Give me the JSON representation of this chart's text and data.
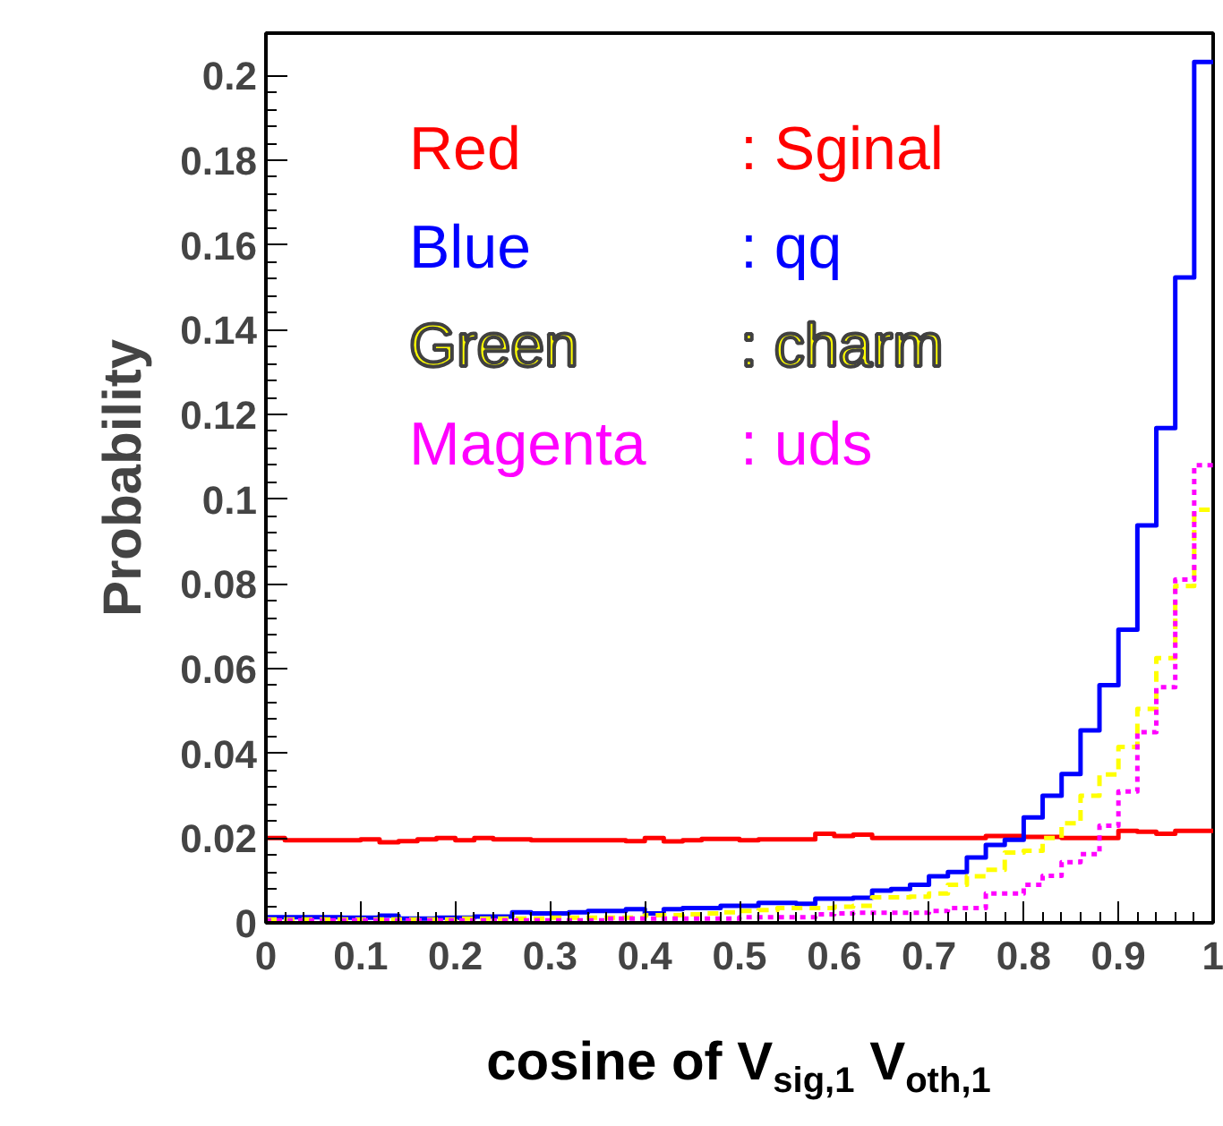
{
  "chart_data": {
    "type": "histogram",
    "xlabel": "cosine of V$_{sig,1}$ V$_{oth,1}$",
    "ylabel": "Probability",
    "annotations": [
      "Red",
      "Blue",
      "Green",
      "Magenta"
    ],
    "bins": [
      0,
      0.02,
      0.04,
      0.06,
      0.08,
      0.1,
      0.12,
      0.14,
      0.16,
      0.18,
      0.2,
      0.22,
      0.24,
      0.26,
      0.28,
      0.3,
      0.32,
      0.34,
      0.36,
      0.38,
      0.4,
      0.42,
      0.44,
      0.46,
      0.48,
      0.5,
      0.52,
      0.54,
      0.56,
      0.58,
      0.6,
      0.62,
      0.64,
      0.66,
      0.68,
      0.7,
      0.72,
      0.74,
      0.76,
      0.78,
      0.8,
      0.82,
      0.84,
      0.86,
      0.88,
      0.9,
      0.92,
      0.94,
      0.96,
      0.98,
      1
    ],
    "series": [
      {
        "name": ": Sginal",
        "color": "#ff0000",
        "line_style": "solid",
        "values": [
          0.02,
          0.0195,
          0.0195,
          0.0195,
          0.0195,
          0.0197,
          0.019,
          0.0193,
          0.0197,
          0.02,
          0.0195,
          0.02,
          0.0197,
          0.0197,
          0.0195,
          0.0195,
          0.0195,
          0.0195,
          0.0195,
          0.0193,
          0.02,
          0.0192,
          0.0195,
          0.0198,
          0.0198,
          0.0195,
          0.0197,
          0.0197,
          0.0197,
          0.021,
          0.0205,
          0.0208,
          0.02,
          0.02,
          0.02,
          0.02,
          0.02,
          0.02,
          0.0205,
          0.0205,
          0.0203,
          0.0203,
          0.02,
          0.02,
          0.02,
          0.0217,
          0.0215,
          0.021,
          0.0217,
          0.0217
        ]
      },
      {
        "name": ": qq",
        "color": "#0000ff",
        "line_style": "solid",
        "values": [
          0.0013,
          0.0013,
          0.0013,
          0.0013,
          0.0012,
          0.0012,
          0.0017,
          0.001,
          0.001,
          0.0012,
          0.0012,
          0.0015,
          0.0015,
          0.0025,
          0.0022,
          0.0022,
          0.0025,
          0.0028,
          0.0028,
          0.0032,
          0.0022,
          0.0032,
          0.0035,
          0.0035,
          0.004,
          0.004,
          0.0047,
          0.0047,
          0.0045,
          0.0057,
          0.0057,
          0.0059,
          0.0076,
          0.008,
          0.009,
          0.011,
          0.012,
          0.0154,
          0.0184,
          0.0196,
          0.0249,
          0.03,
          0.0351,
          0.0454,
          0.0561,
          0.0692,
          0.0938,
          0.1168,
          0.1523,
          0.2032
        ]
      },
      {
        "name": ": charm",
        "color": "#ffff00",
        "line_style": "dashed",
        "values": [
          0.0008,
          0.0008,
          0.0008,
          0.0008,
          0.0008,
          0.0008,
          0.0008,
          0.0008,
          0.0008,
          0.0008,
          0.001,
          0.001,
          0.001,
          0.001,
          0.001,
          0.0012,
          0.0012,
          0.0012,
          0.0012,
          0.0012,
          0.0018,
          0.0018,
          0.002,
          0.0022,
          0.0025,
          0.0028,
          0.003,
          0.0035,
          0.0035,
          0.0035,
          0.0038,
          0.004,
          0.006,
          0.006,
          0.0062,
          0.0069,
          0.009,
          0.011,
          0.0125,
          0.0166,
          0.017,
          0.02,
          0.0235,
          0.03,
          0.035,
          0.0415,
          0.0505,
          0.0625,
          0.0795,
          0.0975
        ]
      },
      {
        "name": ": uds",
        "color": "#ff00ff",
        "line_style": "dotted",
        "values": [
          0.0006,
          0.0006,
          0.0006,
          0.0006,
          0.0006,
          0.0006,
          0.0006,
          0.0006,
          0.0006,
          0.0006,
          0.0006,
          0.0006,
          0.0006,
          0.0006,
          0.0006,
          0.0006,
          0.0006,
          0.0006,
          0.001,
          0.001,
          0.001,
          0.001,
          0.001,
          0.001,
          0.001,
          0.0013,
          0.0013,
          0.0013,
          0.0013,
          0.002,
          0.0022,
          0.0024,
          0.0024,
          0.0024,
          0.0024,
          0.0028,
          0.0035,
          0.0035,
          0.0069,
          0.0069,
          0.009,
          0.0111,
          0.0143,
          0.0162,
          0.0229,
          0.031,
          0.045,
          0.0556,
          0.081,
          0.108
        ]
      }
    ],
    "xlim": [
      0,
      1
    ],
    "ylim": [
      0,
      0.21
    ],
    "xticks": [
      0,
      0.1,
      0.2,
      0.3,
      0.4,
      0.5,
      0.6,
      0.7,
      0.8,
      0.9,
      1
    ],
    "yticks": [
      0,
      0.02,
      0.04,
      0.06,
      0.08,
      0.1,
      0.12,
      0.14,
      0.16,
      0.18,
      0.2
    ],
    "grid": false,
    "legend": "top"
  }
}
